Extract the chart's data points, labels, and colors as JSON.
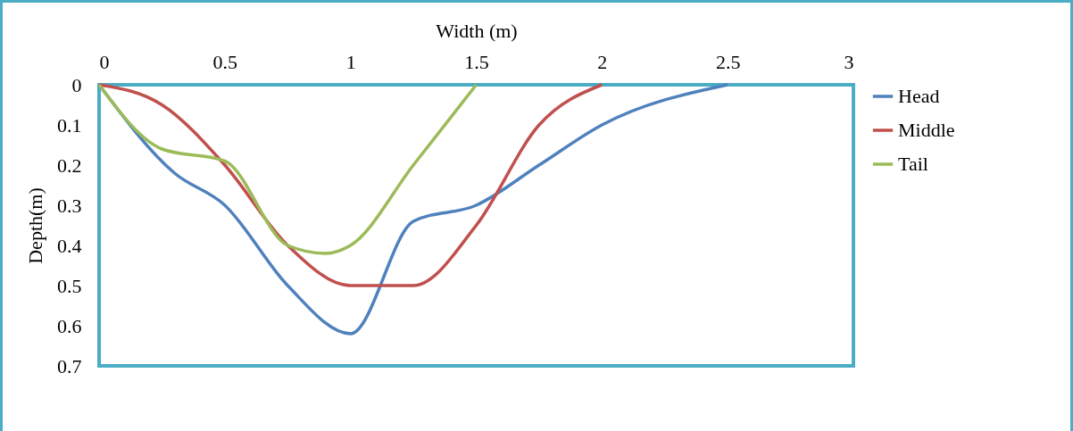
{
  "chart_data": {
    "type": "line",
    "xlabel": "Width (m)",
    "ylabel": "Depth(m)",
    "xlim": [
      0,
      3
    ],
    "xticks": [
      0,
      0.5,
      1,
      1.5,
      2,
      2.5,
      3
    ],
    "ylim": [
      0.7,
      0
    ],
    "yticks": [
      0,
      0.1,
      0.2,
      0.3,
      0.4,
      0.5,
      0.6,
      0.7
    ],
    "grid": false,
    "legend": "right",
    "marker": "none",
    "line_style": "solid",
    "series": [
      {
        "name": "Head",
        "color": "#4f81bd",
        "x": [
          0,
          0.3,
          0.5,
          0.75,
          1,
          1.25,
          1.5,
          1.75,
          2,
          2.5
        ],
        "values": [
          0,
          0.22,
          0.3,
          0.5,
          0.62,
          0.34,
          0.3,
          0.2,
          0.1,
          0
        ]
      },
      {
        "name": "Middle",
        "color": "#c0504d",
        "x": [
          0,
          0.25,
          0.5,
          0.75,
          1,
          1.25,
          1.5,
          1.75,
          2
        ],
        "values": [
          0,
          0.05,
          0.2,
          0.4,
          0.5,
          0.5,
          0.35,
          0.1,
          0
        ]
      },
      {
        "name": "Tail",
        "color": "#9bbb59",
        "x": [
          0,
          0.25,
          0.5,
          0.75,
          0.9,
          1,
          1.25,
          1.5
        ],
        "values": [
          0,
          0.16,
          0.19,
          0.4,
          0.42,
          0.4,
          0.2,
          0
        ]
      }
    ]
  }
}
